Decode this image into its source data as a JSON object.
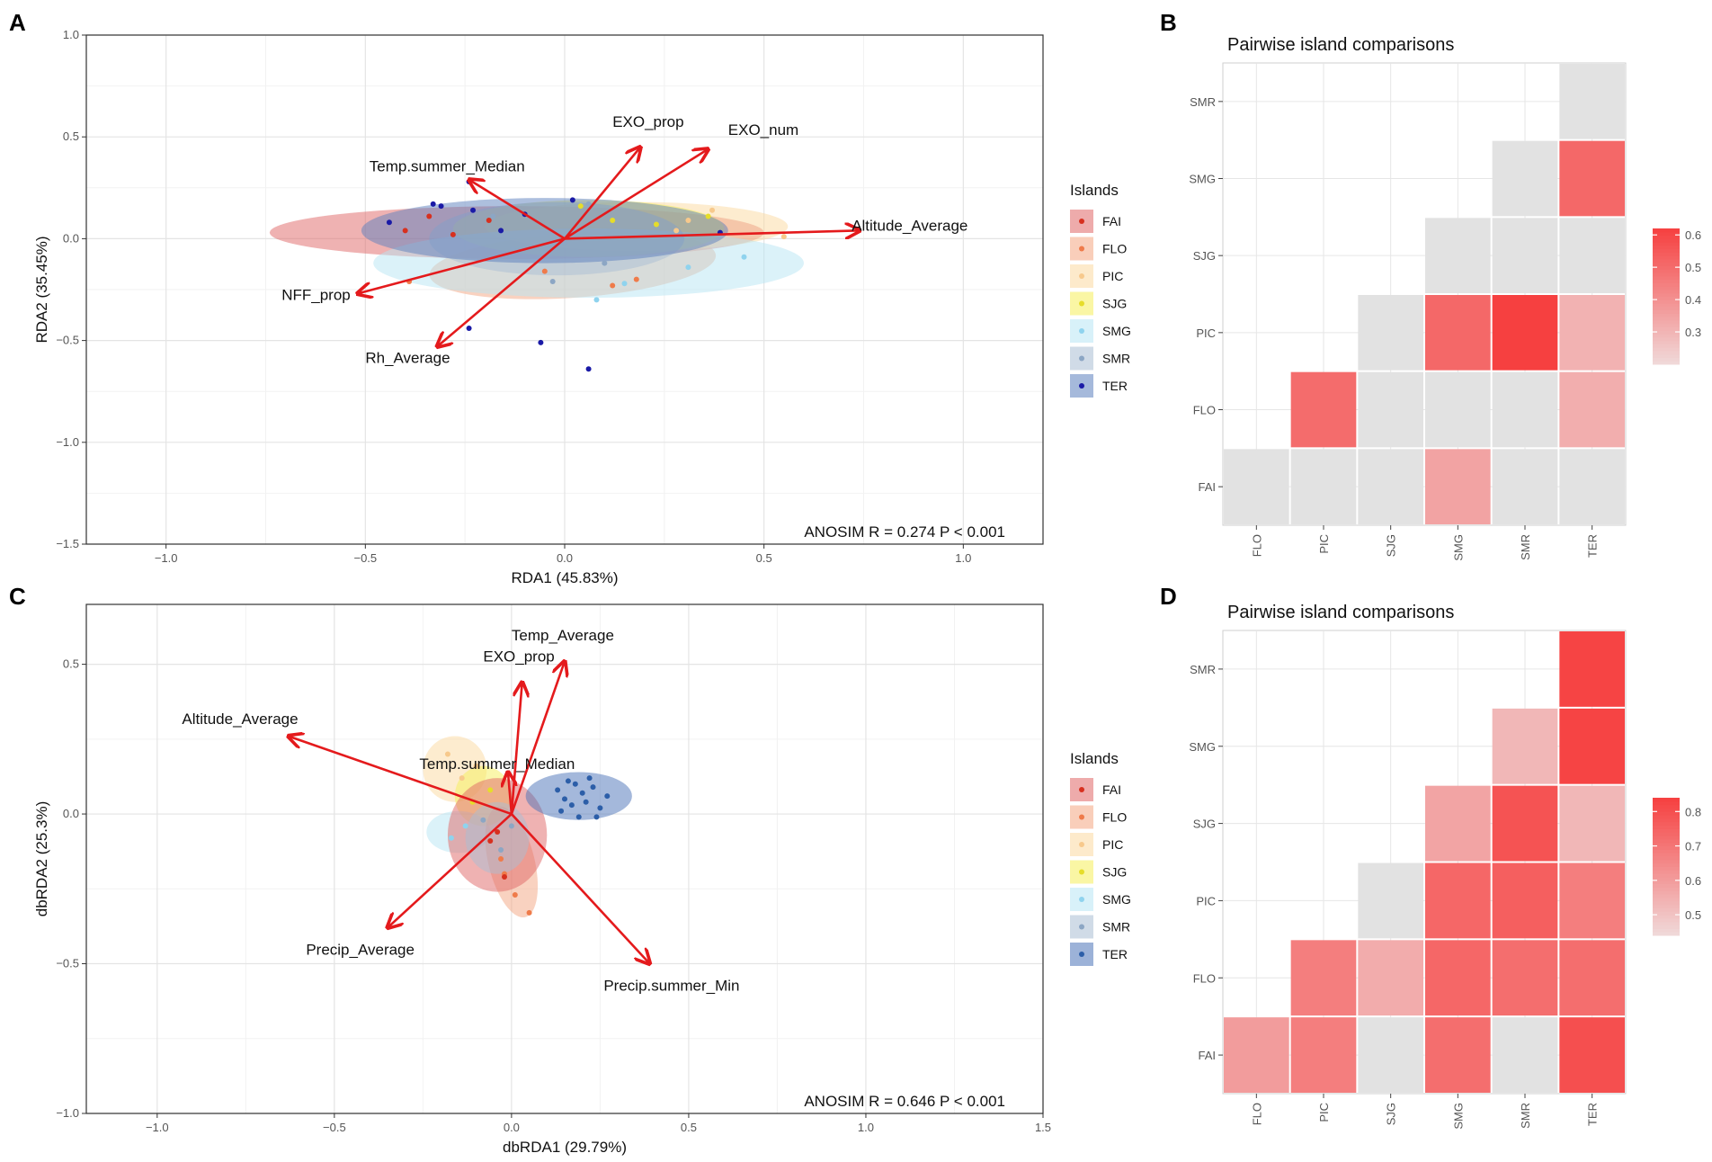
{
  "panels": {
    "a": "A",
    "b": "B",
    "c": "C",
    "d": "D"
  },
  "legend_title": "Islands",
  "chart_data": [
    {
      "id": "A",
      "type": "scatter",
      "subtype": "rda_biplot",
      "xlabel": "RDA1 (45.83%)",
      "ylabel": "RDA2 (35.45%)",
      "xlim": [
        -1.2,
        1.2
      ],
      "ylim": [
        -1.5,
        1.0
      ],
      "xticks": [
        -1.0,
        -0.5,
        0.0,
        0.5,
        1.0
      ],
      "xticklabels": [
        "−1.0",
        "−0.5",
        "0.0",
        "0.5",
        "1.0"
      ],
      "yticks": [
        -1.5,
        -1.0,
        -0.5,
        0.0,
        0.5,
        1.0
      ],
      "yticklabels": [
        "−1.5",
        "−1.0",
        "−0.5",
        "0.0",
        "0.5",
        "1.0"
      ],
      "annotation": "ANOSIM R = 0.274 P < 0.001",
      "legend_title": "Islands",
      "legend": [
        "FAI",
        "FLO",
        "PIC",
        "SJG",
        "SMG",
        "SMR",
        "TER"
      ],
      "colors": {
        "FAI": "#e06666",
        "FLO": "#f4a582",
        "PIC": "#fbd9a0",
        "SJG": "#f5ef5a",
        "SMG": "#b8e6f4",
        "SMR": "#a9bdd4",
        "TER": "#5b7fbd"
      },
      "point_colors": {
        "FAI": "#d7301f",
        "FLO": "#ef7b4a",
        "PIC": "#f7c98c",
        "SJG": "#e6dd2a",
        "SMG": "#8fd3ee",
        "SMR": "#8ca6c4",
        "TER": "#1a1aa6"
      },
      "ellipses": [
        {
          "group": "FAI",
          "cx": -0.12,
          "cy": 0.03,
          "rx": 0.62,
          "ry": 0.13,
          "angle": 0
        },
        {
          "group": "FLO",
          "cx": 0.02,
          "cy": -0.13,
          "rx": 0.36,
          "ry": 0.16,
          "angle": -4
        },
        {
          "group": "PIC",
          "cx": 0.18,
          "cy": 0.06,
          "rx": 0.38,
          "ry": 0.12,
          "angle": 0
        },
        {
          "group": "SJG",
          "cx": 0.06,
          "cy": 0.05,
          "rx": 0.34,
          "ry": 0.14,
          "angle": 0
        },
        {
          "group": "SMG",
          "cx": 0.06,
          "cy": -0.12,
          "rx": 0.54,
          "ry": 0.17,
          "angle": 0
        },
        {
          "group": "SMR",
          "cx": -0.02,
          "cy": 0.0,
          "rx": 0.32,
          "ry": 0.18,
          "angle": 0
        },
        {
          "group": "TER",
          "cx": -0.05,
          "cy": 0.04,
          "rx": 0.46,
          "ry": 0.16,
          "angle": 0
        }
      ],
      "points": [
        {
          "group": "TER",
          "x": -0.24,
          "y": 0.28
        },
        {
          "group": "TER",
          "x": -0.33,
          "y": 0.17
        },
        {
          "group": "TER",
          "x": -0.31,
          "y": 0.16
        },
        {
          "group": "TER",
          "x": -0.23,
          "y": 0.14
        },
        {
          "group": "TER",
          "x": -0.16,
          "y": 0.04
        },
        {
          "group": "TER",
          "x": -0.24,
          "y": -0.44
        },
        {
          "group": "TER",
          "x": -0.06,
          "y": -0.51
        },
        {
          "group": "TER",
          "x": 0.06,
          "y": -0.64
        },
        {
          "group": "TER",
          "x": -0.44,
          "y": 0.08
        },
        {
          "group": "TER",
          "x": 0.39,
          "y": 0.03
        },
        {
          "group": "TER",
          "x": -0.1,
          "y": 0.12
        },
        {
          "group": "TER",
          "x": 0.02,
          "y": 0.19
        },
        {
          "group": "FAI",
          "x": -0.28,
          "y": 0.02
        },
        {
          "group": "FAI",
          "x": -0.4,
          "y": 0.04
        },
        {
          "group": "FAI",
          "x": -0.19,
          "y": 0.09
        },
        {
          "group": "FAI",
          "x": -0.34,
          "y": 0.11
        },
        {
          "group": "FLO",
          "x": -0.39,
          "y": -0.21
        },
        {
          "group": "FLO",
          "x": 0.12,
          "y": -0.23
        },
        {
          "group": "FLO",
          "x": 0.18,
          "y": -0.2
        },
        {
          "group": "FLO",
          "x": -0.05,
          "y": -0.16
        },
        {
          "group": "PIC",
          "x": 0.37,
          "y": 0.14
        },
        {
          "group": "PIC",
          "x": 0.55,
          "y": 0.01
        },
        {
          "group": "PIC",
          "x": 0.31,
          "y": 0.09
        },
        {
          "group": "PIC",
          "x": 0.28,
          "y": 0.04
        },
        {
          "group": "SJG",
          "x": 0.12,
          "y": 0.09
        },
        {
          "group": "SJG",
          "x": 0.04,
          "y": 0.16
        },
        {
          "group": "SJG",
          "x": 0.36,
          "y": 0.11
        },
        {
          "group": "SJG",
          "x": 0.23,
          "y": 0.07
        },
        {
          "group": "SMG",
          "x": 0.45,
          "y": -0.09
        },
        {
          "group": "SMG",
          "x": 0.15,
          "y": -0.22
        },
        {
          "group": "SMG",
          "x": 0.08,
          "y": -0.3
        },
        {
          "group": "SMG",
          "x": 0.31,
          "y": -0.14
        },
        {
          "group": "SMR",
          "x": -0.03,
          "y": -0.21
        },
        {
          "group": "SMR",
          "x": 0.0,
          "y": -0.02
        },
        {
          "group": "SMR",
          "x": -0.13,
          "y": -0.05
        },
        {
          "group": "SMR",
          "x": 0.1,
          "y": -0.12
        },
        {
          "group": "SMR",
          "x": -0.18,
          "y": 0.11
        },
        {
          "group": "SMR",
          "x": 0.06,
          "y": 0.17
        }
      ],
      "arrows": [
        {
          "label": "EXO_prop",
          "x": 0.19,
          "y": 0.45,
          "lx": 0.12,
          "ly": 0.55
        },
        {
          "label": "EXO_num",
          "x": 0.36,
          "y": 0.44,
          "lx": 0.41,
          "ly": 0.51
        },
        {
          "label": "Temp.summer_Median",
          "x": -0.24,
          "y": 0.29,
          "lx": -0.49,
          "ly": 0.33
        },
        {
          "label": "Altitude_Average",
          "x": 0.74,
          "y": 0.04,
          "lx": 0.72,
          "ly": 0.04
        },
        {
          "label": "NFF_prop",
          "x": -0.52,
          "y": -0.27,
          "lx": -0.71,
          "ly": -0.3
        },
        {
          "label": "Rh_Average",
          "x": -0.32,
          "y": -0.53,
          "lx": -0.5,
          "ly": -0.61
        }
      ]
    },
    {
      "id": "B",
      "type": "heatmap",
      "title": "Pairwise island comparisons",
      "xcategories": [
        "FLO",
        "PIC",
        "SJG",
        "SMG",
        "SMR",
        "TER"
      ],
      "ycategories": [
        "FAI",
        "FLO",
        "PIC",
        "SJG",
        "SMG",
        "SMR"
      ],
      "values": [
        [
          null,
          null,
          null,
          0.35,
          null,
          null
        ],
        [
          null,
          0.5,
          null,
          null,
          null,
          0.32
        ],
        [
          null,
          null,
          null,
          0.51,
          0.62,
          0.31
        ],
        [
          null,
          null,
          null,
          null,
          null,
          null
        ],
        [
          null,
          null,
          null,
          null,
          null,
          0.51
        ],
        [
          null,
          null,
          null,
          null,
          null,
          null
        ]
      ],
      "mask": [
        [
          true,
          true,
          true,
          true,
          true,
          true
        ],
        [
          false,
          true,
          true,
          true,
          true,
          true
        ],
        [
          false,
          false,
          true,
          true,
          true,
          true
        ],
        [
          false,
          false,
          false,
          true,
          true,
          true
        ],
        [
          false,
          false,
          false,
          false,
          true,
          true
        ],
        [
          false,
          false,
          false,
          false,
          false,
          true
        ]
      ],
      "colorbar": {
        "ticks": [
          0.3,
          0.4,
          0.5,
          0.6
        ],
        "ticklabels": [
          "0.3",
          "0.4",
          "0.5",
          "0.6"
        ],
        "min": 0.2,
        "max": 0.62
      }
    },
    {
      "id": "C",
      "type": "scatter",
      "subtype": "dbrda_biplot",
      "xlabel": "dbRDA1 (29.79%)",
      "ylabel": "dbRDA2 (25.3%)",
      "xlim": [
        -1.2,
        1.5
      ],
      "ylim": [
        -1.0,
        0.7
      ],
      "xticks": [
        -1.0,
        -0.5,
        0.0,
        0.5,
        1.0,
        1.5
      ],
      "xticklabels": [
        "−1.0",
        "−0.5",
        "0.0",
        "0.5",
        "1.0",
        "1.5"
      ],
      "yticks": [
        -1.0,
        -0.5,
        0.0,
        0.5
      ],
      "yticklabels": [
        "−1.0",
        "−0.5",
        "0.0",
        "0.5"
      ],
      "annotation": "ANOSIM R = 0.646 P < 0.001",
      "legend_title": "Islands",
      "legend": [
        "FAI",
        "FLO",
        "PIC",
        "SJG",
        "SMG",
        "SMR",
        "TER"
      ],
      "colors": {
        "FAI": "#e06666",
        "FLO": "#f4a582",
        "PIC": "#fbd9a0",
        "SJG": "#f5ef5a",
        "SMG": "#b8e6f4",
        "SMR": "#a9bdd4",
        "TER": "#4a72b8"
      },
      "point_colors": {
        "FAI": "#d7301f",
        "FLO": "#ef7b4a",
        "PIC": "#f7c98c",
        "SJG": "#e6dd2a",
        "SMG": "#8fd3ee",
        "SMR": "#8ca6c4",
        "TER": "#2c5ea8"
      },
      "ellipses": [
        {
          "group": "PIC",
          "cx": -0.16,
          "cy": 0.15,
          "rx": 0.09,
          "ry": 0.11,
          "angle": 0
        },
        {
          "group": "SJG",
          "cx": -0.08,
          "cy": 0.06,
          "rx": 0.08,
          "ry": 0.1,
          "angle": 0
        },
        {
          "group": "SMG",
          "cx": -0.15,
          "cy": -0.06,
          "rx": 0.09,
          "ry": 0.07,
          "angle": 0
        },
        {
          "group": "FLO",
          "cx": 0.0,
          "cy": -0.16,
          "rx": 0.065,
          "ry": 0.19,
          "angle": -14
        },
        {
          "group": "FAI",
          "cx": -0.04,
          "cy": -0.07,
          "rx": 0.14,
          "ry": 0.19,
          "angle": 0
        },
        {
          "group": "SMR",
          "cx": -0.04,
          "cy": -0.08,
          "rx": 0.09,
          "ry": 0.12,
          "angle": 0
        },
        {
          "group": "TER",
          "cx": 0.19,
          "cy": 0.06,
          "rx": 0.15,
          "ry": 0.08,
          "angle": 0
        }
      ],
      "points": [
        {
          "group": "TER",
          "x": 0.13,
          "y": 0.08
        },
        {
          "group": "TER",
          "x": 0.15,
          "y": 0.05
        },
        {
          "group": "TER",
          "x": 0.18,
          "y": 0.1
        },
        {
          "group": "TER",
          "x": 0.21,
          "y": 0.04
        },
        {
          "group": "TER",
          "x": 0.23,
          "y": 0.09
        },
        {
          "group": "TER",
          "x": 0.25,
          "y": 0.02
        },
        {
          "group": "TER",
          "x": 0.17,
          "y": 0.03
        },
        {
          "group": "TER",
          "x": 0.2,
          "y": 0.07
        },
        {
          "group": "TER",
          "x": 0.27,
          "y": 0.06
        },
        {
          "group": "TER",
          "x": 0.14,
          "y": 0.01
        },
        {
          "group": "TER",
          "x": 0.22,
          "y": 0.12
        },
        {
          "group": "TER",
          "x": 0.24,
          "y": -0.01
        },
        {
          "group": "TER",
          "x": 0.19,
          "y": -0.01
        },
        {
          "group": "TER",
          "x": 0.16,
          "y": 0.11
        },
        {
          "group": "PIC",
          "x": -0.18,
          "y": 0.2
        },
        {
          "group": "PIC",
          "x": -0.14,
          "y": 0.12
        },
        {
          "group": "PIC",
          "x": -0.1,
          "y": 0.16
        },
        {
          "group": "SJG",
          "x": -0.06,
          "y": 0.08
        },
        {
          "group": "SJG",
          "x": -0.11,
          "y": 0.04
        },
        {
          "group": "SMG",
          "x": -0.17,
          "y": -0.08
        },
        {
          "group": "SMG",
          "x": -0.13,
          "y": -0.04
        },
        {
          "group": "FLO",
          "x": -0.02,
          "y": -0.2
        },
        {
          "group": "FLO",
          "x": 0.01,
          "y": -0.27
        },
        {
          "group": "FLO",
          "x": 0.05,
          "y": -0.33
        },
        {
          "group": "FLO",
          "x": -0.03,
          "y": -0.15
        },
        {
          "group": "FAI",
          "x": -0.02,
          "y": -0.21
        },
        {
          "group": "FAI",
          "x": -0.06,
          "y": -0.09
        },
        {
          "group": "FAI",
          "x": -0.04,
          "y": -0.06
        },
        {
          "group": "SMR",
          "x": -0.03,
          "y": -0.12
        },
        {
          "group": "SMR",
          "x": -0.08,
          "y": -0.02
        },
        {
          "group": "SMR",
          "x": 0.0,
          "y": -0.04
        }
      ],
      "arrows": [
        {
          "label": "Temp_Average",
          "x": 0.15,
          "y": 0.51,
          "lx": 0.0,
          "ly": 0.58
        },
        {
          "label": "EXO_prop",
          "x": 0.03,
          "y": 0.44,
          "lx": -0.08,
          "ly": 0.51
        },
        {
          "label": "Altitude_Average",
          "x": -0.63,
          "y": 0.26,
          "lx": -0.93,
          "ly": 0.3
        },
        {
          "label": "Temp.summer_Median",
          "x": -0.01,
          "y": 0.14,
          "lx": -0.26,
          "ly": 0.15
        },
        {
          "label": "Precip_Average",
          "x": -0.35,
          "y": -0.38,
          "lx": -0.58,
          "ly": -0.47
        },
        {
          "label": "Precip.summer_Min",
          "x": 0.39,
          "y": -0.5,
          "lx": 0.26,
          "ly": -0.59
        }
      ]
    },
    {
      "id": "D",
      "type": "heatmap",
      "title": "Pairwise island comparisons",
      "xcategories": [
        "FLO",
        "PIC",
        "SJG",
        "SMG",
        "SMR",
        "TER"
      ],
      "ycategories": [
        "FAI",
        "FLO",
        "PIC",
        "SJG",
        "SMG",
        "SMR"
      ],
      "values": [
        [
          0.6,
          0.68,
          null,
          0.72,
          null,
          0.8
        ],
        [
          null,
          0.68,
          0.56,
          0.74,
          0.72,
          0.72
        ],
        [
          null,
          null,
          null,
          0.74,
          0.76,
          0.68
        ],
        [
          null,
          null,
          null,
          0.58,
          0.79,
          0.53
        ],
        [
          null,
          null,
          null,
          null,
          0.53,
          0.83
        ],
        [
          null,
          null,
          null,
          null,
          null,
          0.83
        ]
      ],
      "mask": [
        [
          true,
          true,
          true,
          true,
          true,
          true
        ],
        [
          false,
          true,
          true,
          true,
          true,
          true
        ],
        [
          false,
          false,
          true,
          true,
          true,
          true
        ],
        [
          false,
          false,
          false,
          true,
          true,
          true
        ],
        [
          false,
          false,
          false,
          false,
          true,
          true
        ],
        [
          false,
          false,
          false,
          false,
          false,
          true
        ]
      ],
      "colorbar": {
        "ticks": [
          0.5,
          0.6,
          0.7,
          0.8
        ],
        "ticklabels": [
          "0.5",
          "0.6",
          "0.7",
          "0.8"
        ],
        "min": 0.44,
        "max": 0.84
      }
    }
  ]
}
